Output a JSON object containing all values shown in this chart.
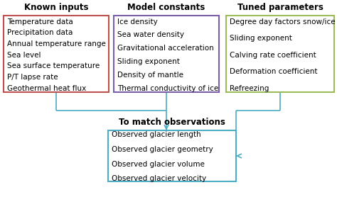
{
  "known_inputs_title": "Known inputs",
  "known_inputs_items": [
    "Temperature data",
    "Precipitation data",
    "Annual temperature range",
    "Sea level",
    "Sea surface temperature",
    "P/T lapse rate",
    "Geothermal heat flux"
  ],
  "known_inputs_color": "#c0504d",
  "model_constants_title": "Model constants",
  "model_constants_items": [
    "Ice density",
    "Sea water density",
    "Gravitational acceleration",
    "Sliding exponent",
    "Density of mantle",
    "Thermal conductivity of ice"
  ],
  "model_constants_color": "#7b5ea7",
  "tuned_parameters_title": "Tuned parameters",
  "tuned_parameters_items": [
    "Degree day factors snow/ice",
    "Sliding exponent",
    "Calving rate coefficient",
    "Deformation coefficient",
    "Refreezing"
  ],
  "tuned_parameters_color": "#9bbb59",
  "observations_title": "To match observations",
  "observations_items": [
    "Observed glacier length",
    "Observed glacier geometry",
    "Observed glacier volume",
    "Observed glacier velocity"
  ],
  "observations_color": "#4bacc6",
  "arrow_color": "#4bacc6",
  "bg_color": "#ffffff",
  "title_fontsize": 8.5,
  "item_fontsize": 7.5
}
